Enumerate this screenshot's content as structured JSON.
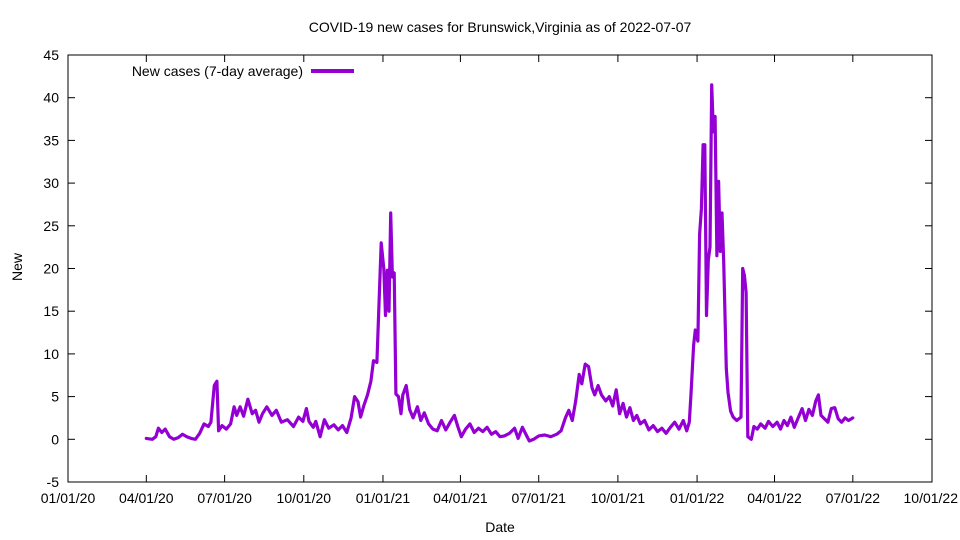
{
  "chart_data": {
    "type": "line",
    "title": "COVID-19 new cases for Brunswick,Virginia as of 2022-07-07",
    "xlabel": "Date",
    "ylabel": "New",
    "x_range": [
      "2020-01-01",
      "2022-10-01"
    ],
    "ylim": [
      -5,
      45
    ],
    "x_ticks": [
      {
        "date": "2020-01-01",
        "label": "01/01/20"
      },
      {
        "date": "2020-04-01",
        "label": "04/01/20"
      },
      {
        "date": "2020-07-01",
        "label": "07/01/20"
      },
      {
        "date": "2020-10-01",
        "label": "10/01/20"
      },
      {
        "date": "2021-01-01",
        "label": "01/01/21"
      },
      {
        "date": "2021-04-01",
        "label": "04/01/21"
      },
      {
        "date": "2021-07-01",
        "label": "07/01/21"
      },
      {
        "date": "2021-10-01",
        "label": "10/01/21"
      },
      {
        "date": "2022-01-01",
        "label": "01/01/22"
      },
      {
        "date": "2022-04-01",
        "label": "04/01/22"
      },
      {
        "date": "2022-07-01",
        "label": "07/01/22"
      },
      {
        "date": "2022-10-01",
        "label": "10/01/22"
      }
    ],
    "y_ticks": [
      -5,
      0,
      5,
      10,
      15,
      20,
      25,
      30,
      35,
      40,
      45
    ],
    "grid": false,
    "legend_position": "top-left",
    "series": [
      {
        "name": "New cases (7-day average)",
        "color": "#9400d3",
        "points": [
          [
            "2020-04-01",
            0.1
          ],
          [
            "2020-04-08",
            0.0
          ],
          [
            "2020-04-12",
            0.3
          ],
          [
            "2020-04-15",
            1.3
          ],
          [
            "2020-04-19",
            0.8
          ],
          [
            "2020-04-23",
            1.2
          ],
          [
            "2020-04-28",
            0.3
          ],
          [
            "2020-05-03",
            0.0
          ],
          [
            "2020-05-08",
            0.2
          ],
          [
            "2020-05-13",
            0.6
          ],
          [
            "2020-05-18",
            0.3
          ],
          [
            "2020-05-23",
            0.1
          ],
          [
            "2020-05-28",
            0.0
          ],
          [
            "2020-06-02",
            0.7
          ],
          [
            "2020-06-07",
            1.8
          ],
          [
            "2020-06-12",
            1.5
          ],
          [
            "2020-06-15",
            2.0
          ],
          [
            "2020-06-19",
            6.3
          ],
          [
            "2020-06-22",
            6.8
          ],
          [
            "2020-06-24",
            1.0
          ],
          [
            "2020-06-28",
            1.6
          ],
          [
            "2020-07-03",
            1.2
          ],
          [
            "2020-07-08",
            1.8
          ],
          [
            "2020-07-12",
            3.8
          ],
          [
            "2020-07-15",
            2.8
          ],
          [
            "2020-07-19",
            3.8
          ],
          [
            "2020-07-23",
            2.7
          ],
          [
            "2020-07-28",
            4.7
          ],
          [
            "2020-08-02",
            3.0
          ],
          [
            "2020-08-06",
            3.4
          ],
          [
            "2020-08-10",
            2.0
          ],
          [
            "2020-08-14",
            3.0
          ],
          [
            "2020-08-19",
            3.8
          ],
          [
            "2020-08-25",
            2.8
          ],
          [
            "2020-08-30",
            3.4
          ],
          [
            "2020-09-05",
            2.0
          ],
          [
            "2020-09-12",
            2.3
          ],
          [
            "2020-09-19",
            1.5
          ],
          [
            "2020-09-25",
            2.6
          ],
          [
            "2020-09-30",
            2.1
          ],
          [
            "2020-10-04",
            3.6
          ],
          [
            "2020-10-07",
            2.1
          ],
          [
            "2020-10-12",
            1.4
          ],
          [
            "2020-10-15",
            2.1
          ],
          [
            "2020-10-20",
            0.3
          ],
          [
            "2020-10-25",
            2.3
          ],
          [
            "2020-10-30",
            1.3
          ],
          [
            "2020-11-05",
            1.7
          ],
          [
            "2020-11-10",
            1.1
          ],
          [
            "2020-11-15",
            1.6
          ],
          [
            "2020-11-20",
            0.8
          ],
          [
            "2020-11-25",
            2.5
          ],
          [
            "2020-11-29",
            5.0
          ],
          [
            "2020-12-03",
            4.4
          ],
          [
            "2020-12-06",
            2.6
          ],
          [
            "2020-12-10",
            4.0
          ],
          [
            "2020-12-14",
            5.2
          ],
          [
            "2020-12-18",
            6.8
          ],
          [
            "2020-12-21",
            9.2
          ],
          [
            "2020-12-25",
            9.0
          ],
          [
            "2020-12-28",
            17.5
          ],
          [
            "2020-12-30",
            23.0
          ],
          [
            "2021-01-02",
            20.0
          ],
          [
            "2021-01-04",
            14.5
          ],
          [
            "2021-01-06",
            19.8
          ],
          [
            "2021-01-08",
            15.0
          ],
          [
            "2021-01-10",
            26.5
          ],
          [
            "2021-01-12",
            19.0
          ],
          [
            "2021-01-14",
            19.5
          ],
          [
            "2021-01-16",
            5.3
          ],
          [
            "2021-01-19",
            5.0
          ],
          [
            "2021-01-22",
            3.0
          ],
          [
            "2021-01-24",
            5.2
          ],
          [
            "2021-01-28",
            6.3
          ],
          [
            "2021-02-01",
            3.5
          ],
          [
            "2021-02-05",
            2.5
          ],
          [
            "2021-02-10",
            3.8
          ],
          [
            "2021-02-14",
            2.2
          ],
          [
            "2021-02-18",
            3.1
          ],
          [
            "2021-02-23",
            1.8
          ],
          [
            "2021-02-28",
            1.2
          ],
          [
            "2021-03-05",
            1.0
          ],
          [
            "2021-03-10",
            2.2
          ],
          [
            "2021-03-15",
            1.1
          ],
          [
            "2021-03-20",
            2.0
          ],
          [
            "2021-03-25",
            2.8
          ],
          [
            "2021-03-29",
            1.5
          ],
          [
            "2021-04-02",
            0.3
          ],
          [
            "2021-04-07",
            1.2
          ],
          [
            "2021-04-12",
            1.8
          ],
          [
            "2021-04-17",
            0.8
          ],
          [
            "2021-04-22",
            1.3
          ],
          [
            "2021-04-27",
            0.9
          ],
          [
            "2021-05-02",
            1.4
          ],
          [
            "2021-05-07",
            0.6
          ],
          [
            "2021-05-12",
            0.9
          ],
          [
            "2021-05-17",
            0.3
          ],
          [
            "2021-05-22",
            0.4
          ],
          [
            "2021-05-28",
            0.7
          ],
          [
            "2021-06-03",
            1.3
          ],
          [
            "2021-06-07",
            0.1
          ],
          [
            "2021-06-12",
            1.4
          ],
          [
            "2021-06-17",
            0.4
          ],
          [
            "2021-06-20",
            -0.2
          ],
          [
            "2021-06-25",
            0.0
          ],
          [
            "2021-07-01",
            0.4
          ],
          [
            "2021-07-08",
            0.5
          ],
          [
            "2021-07-15",
            0.3
          ],
          [
            "2021-07-22",
            0.6
          ],
          [
            "2021-07-27",
            1.0
          ],
          [
            "2021-08-01",
            2.5
          ],
          [
            "2021-08-05",
            3.4
          ],
          [
            "2021-08-09",
            2.2
          ],
          [
            "2021-08-13",
            4.5
          ],
          [
            "2021-08-17",
            7.6
          ],
          [
            "2021-08-20",
            6.5
          ],
          [
            "2021-08-24",
            8.8
          ],
          [
            "2021-08-28",
            8.5
          ],
          [
            "2021-09-01",
            6.0
          ],
          [
            "2021-09-04",
            5.2
          ],
          [
            "2021-09-08",
            6.3
          ],
          [
            "2021-09-12",
            5.2
          ],
          [
            "2021-09-17",
            4.5
          ],
          [
            "2021-09-21",
            5.0
          ],
          [
            "2021-09-25",
            3.9
          ],
          [
            "2021-09-29",
            5.8
          ],
          [
            "2021-10-03",
            3.0
          ],
          [
            "2021-10-07",
            4.2
          ],
          [
            "2021-10-11",
            2.6
          ],
          [
            "2021-10-15",
            3.7
          ],
          [
            "2021-10-19",
            2.2
          ],
          [
            "2021-10-23",
            2.8
          ],
          [
            "2021-10-27",
            1.8
          ],
          [
            "2021-11-01",
            2.2
          ],
          [
            "2021-11-06",
            1.1
          ],
          [
            "2021-11-11",
            1.6
          ],
          [
            "2021-11-16",
            0.9
          ],
          [
            "2021-11-21",
            1.3
          ],
          [
            "2021-11-26",
            0.7
          ],
          [
            "2021-12-01",
            1.4
          ],
          [
            "2021-12-06",
            2.0
          ],
          [
            "2021-12-11",
            1.2
          ],
          [
            "2021-12-16",
            2.2
          ],
          [
            "2021-12-20",
            1.0
          ],
          [
            "2021-12-23",
            2.0
          ],
          [
            "2021-12-25",
            5.3
          ],
          [
            "2021-12-28",
            11.0
          ],
          [
            "2021-12-30",
            12.8
          ],
          [
            "2022-01-02",
            11.5
          ],
          [
            "2022-01-04",
            24.0
          ],
          [
            "2022-01-06",
            27.0
          ],
          [
            "2022-01-08",
            34.5
          ],
          [
            "2022-01-10",
            34.5
          ],
          [
            "2022-01-12",
            14.5
          ],
          [
            "2022-01-14",
            21.0
          ],
          [
            "2022-01-16",
            22.5
          ],
          [
            "2022-01-18",
            41.5
          ],
          [
            "2022-01-20",
            36.0
          ],
          [
            "2022-01-22",
            37.8
          ],
          [
            "2022-01-24",
            21.5
          ],
          [
            "2022-01-26",
            30.2
          ],
          [
            "2022-01-28",
            22.0
          ],
          [
            "2022-01-30",
            26.5
          ],
          [
            "2022-02-01",
            20.8
          ],
          [
            "2022-02-04",
            8.3
          ],
          [
            "2022-02-06",
            5.5
          ],
          [
            "2022-02-09",
            3.3
          ],
          [
            "2022-02-12",
            2.6
          ],
          [
            "2022-02-16",
            2.2
          ],
          [
            "2022-02-21",
            2.6
          ],
          [
            "2022-02-23",
            20.0
          ],
          [
            "2022-02-25",
            19.2
          ],
          [
            "2022-02-27",
            17.2
          ],
          [
            "2022-03-01",
            0.3
          ],
          [
            "2022-03-05",
            0.0
          ],
          [
            "2022-03-08",
            1.5
          ],
          [
            "2022-03-12",
            1.2
          ],
          [
            "2022-03-16",
            1.8
          ],
          [
            "2022-03-21",
            1.3
          ],
          [
            "2022-03-25",
            2.1
          ],
          [
            "2022-03-30",
            1.5
          ],
          [
            "2022-04-04",
            2.0
          ],
          [
            "2022-04-08",
            1.2
          ],
          [
            "2022-04-12",
            2.2
          ],
          [
            "2022-04-16",
            1.6
          ],
          [
            "2022-04-20",
            2.6
          ],
          [
            "2022-04-24",
            1.4
          ],
          [
            "2022-04-28",
            2.4
          ],
          [
            "2022-05-03",
            3.6
          ],
          [
            "2022-05-07",
            2.2
          ],
          [
            "2022-05-11",
            3.5
          ],
          [
            "2022-05-15",
            2.8
          ],
          [
            "2022-05-19",
            4.5
          ],
          [
            "2022-05-22",
            5.2
          ],
          [
            "2022-05-25",
            2.8
          ],
          [
            "2022-05-29",
            2.4
          ],
          [
            "2022-06-02",
            2.0
          ],
          [
            "2022-06-06",
            3.6
          ],
          [
            "2022-06-10",
            3.7
          ],
          [
            "2022-06-14",
            2.4
          ],
          [
            "2022-06-18",
            2.0
          ],
          [
            "2022-06-22",
            2.5
          ],
          [
            "2022-06-26",
            2.2
          ],
          [
            "2022-07-01",
            2.5
          ]
        ]
      }
    ]
  }
}
